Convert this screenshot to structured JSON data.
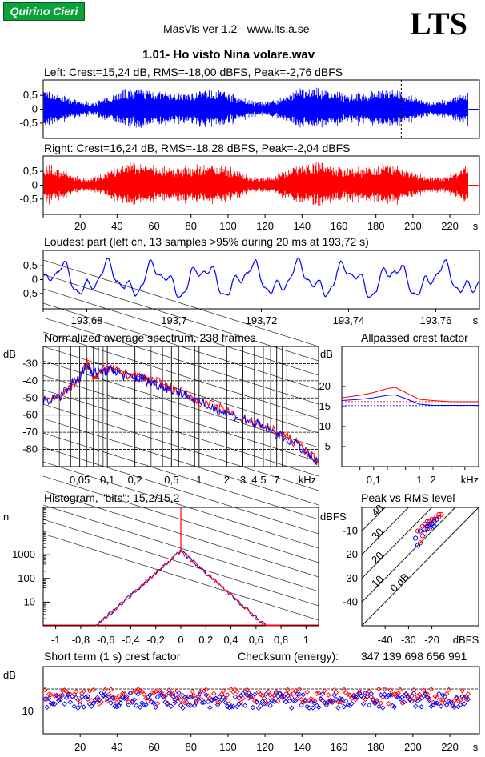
{
  "header": {
    "badge_text": "Quirino Cieri",
    "app_title": "MasVis ver 1.2 - www.lts.a.se",
    "logo": "LTS",
    "file_title": "1.01- Ho visto Nina volare.wav"
  },
  "panels": {
    "left_title": "Left: Crest=15,24 dB, RMS=-18,00 dBFS, Peak=-2,76 dBFS",
    "right_title": "Right: Crest=16,24 dB, RMS=-18,28 dBFS, Peak=-2,04 dBFS",
    "loudest_title": "Loudest part (left  ch, 13 samples >95% during 20 ms at 193,72 s)",
    "spectrum_title": "Normalized average spectrum, 238 frames",
    "allpass_title": "Allpassed crest factor",
    "histogram_title": "Histogram, \"bits\": 15,2/15,2",
    "peakrms_title": "Peak vs RMS level",
    "crest_title": "Short term (1 s) crest factor",
    "checksum_label": "Checksum (energy):",
    "checksum_value": "347 139 698 656 991"
  },
  "colors": {
    "left": "#0000ff",
    "right": "#ff0000",
    "badge": "#0aa337"
  },
  "chart_data": [
    {
      "id": "left-waveform",
      "type": "area",
      "title": "Left: Crest=15,24 dB, RMS=-18,00 dBFS, Peak=-2,76 dBFS",
      "yticks": [
        "0,5",
        "0",
        "-0,5"
      ],
      "ylim": [
        -1,
        1
      ],
      "xlim": [
        0,
        236
      ],
      "marker_x": 193.72,
      "series": [
        {
          "color": "#0000ff",
          "rms_dbfs": -18.0,
          "peak_dbfs": -2.76
        }
      ]
    },
    {
      "id": "right-waveform",
      "type": "area",
      "title": "Right: Crest=16,24 dB, RMS=-18,28 dBFS, Peak=-2,04 dBFS",
      "yticks": [
        "0,5",
        "0",
        "-0,5"
      ],
      "ylim": [
        -1,
        1
      ],
      "xlim": [
        0,
        236
      ],
      "xticks": [
        20,
        40,
        60,
        80,
        100,
        120,
        140,
        160,
        180,
        200,
        220
      ],
      "xticklabels": [
        "20",
        "40",
        "60",
        "80",
        "100",
        "120",
        "140",
        "160",
        "180",
        "200",
        "220"
      ],
      "xunit": "s",
      "series": [
        {
          "color": "#ff0000",
          "rms_dbfs": -18.28,
          "peak_dbfs": -2.04
        }
      ]
    },
    {
      "id": "loudest-part",
      "type": "line",
      "title": "Loudest part (left  ch, 13 samples >95% during 20 ms at 193,72 s)",
      "yticks": [
        "0,5",
        "0",
        "-0,5"
      ],
      "ylim": [
        -1,
        1
      ],
      "xlim": [
        193.67,
        193.77
      ],
      "xticks": [
        193.68,
        193.7,
        193.72,
        193.74,
        193.76
      ],
      "xticklabels": [
        "193,68",
        "193,7",
        "193,72",
        "193,74",
        "193,76"
      ],
      "xunit": "s"
    },
    {
      "id": "spectrum",
      "type": "line",
      "title": "Normalized average spectrum, 238 frames",
      "ylabel": "dB",
      "yticks": [
        -30,
        -40,
        -50,
        -60,
        -70,
        -80
      ],
      "ylim": [
        -90,
        -20
      ],
      "xlim_khz": [
        0.02,
        20
      ],
      "xticks": [
        0.05,
        0.1,
        0.2,
        0.5,
        1,
        2,
        3,
        4,
        5,
        7
      ],
      "xticklabels": [
        "0,05",
        "0,1",
        "0,2",
        "0,5",
        "1",
        "2",
        "3",
        "4",
        "5",
        "7"
      ],
      "xunit": "kHz",
      "series": [
        {
          "color": "#ff0000",
          "x": [
            0.02,
            0.03,
            0.04,
            0.05,
            0.06,
            0.07,
            0.08,
            0.1,
            0.12,
            0.15,
            0.2,
            0.25,
            0.3,
            0.4,
            0.5,
            0.7,
            1,
            1.5,
            2,
            3,
            4,
            5,
            7,
            10,
            15,
            20
          ],
          "y": [
            -52,
            -49,
            -43,
            -39,
            -29,
            -37,
            -36,
            -33,
            -34,
            -36,
            -37,
            -38,
            -40,
            -42,
            -44,
            -47,
            -52,
            -55,
            -58,
            -62,
            -64,
            -66,
            -70,
            -74,
            -81,
            -88
          ]
        },
        {
          "color": "#0000ff",
          "x": [
            0.02,
            0.03,
            0.04,
            0.05,
            0.06,
            0.07,
            0.08,
            0.1,
            0.12,
            0.15,
            0.2,
            0.25,
            0.3,
            0.4,
            0.5,
            0.7,
            1,
            1.5,
            2,
            3,
            4,
            5,
            7,
            10,
            15,
            20
          ],
          "y": [
            -52,
            -49,
            -42,
            -38,
            -31,
            -35,
            -35,
            -34,
            -34,
            -37,
            -38,
            -39,
            -41,
            -43,
            -45,
            -48,
            -53,
            -56,
            -59,
            -62,
            -65,
            -67,
            -71,
            -75,
            -82,
            -89
          ]
        }
      ]
    },
    {
      "id": "allpassed-crest",
      "type": "line",
      "title": "Allpassed crest factor",
      "ylabel": "dB",
      "yticks": [
        20,
        15,
        10,
        5
      ],
      "ylim": [
        0,
        30
      ],
      "xticks": [
        0.1,
        1,
        2
      ],
      "xticklabels": [
        "0,1",
        "1",
        "2"
      ],
      "xunit": "kHz",
      "series": [
        {
          "color": "#ff0000",
          "x": [
            0.02,
            0.05,
            0.1,
            0.2,
            0.3,
            0.5,
            1,
            2,
            5,
            20
          ],
          "y": [
            17.2,
            17.8,
            18.5,
            19.5,
            19.8,
            18.5,
            16.8,
            16.5,
            16.2,
            16.2
          ]
        },
        {
          "color": "#0000ff",
          "x": [
            0.02,
            0.05,
            0.1,
            0.2,
            0.3,
            0.5,
            1,
            2,
            5,
            20
          ],
          "y": [
            16.5,
            16.8,
            17.2,
            17.8,
            17.9,
            17.0,
            15.6,
            15.3,
            15.3,
            15.3
          ]
        }
      ],
      "ref_lines": [
        {
          "color": "#ff0000",
          "y": 16.24
        },
        {
          "color": "#0000ff",
          "y": 15.24
        }
      ]
    },
    {
      "id": "histogram",
      "type": "line",
      "title": "Histogram, \"bits\": 15,2/15,2",
      "ylabel": "n",
      "yticks": [
        1000,
        100,
        10
      ],
      "yticklabels": [
        "1000",
        "100",
        "10"
      ],
      "yscale": "log",
      "ylim": [
        1,
        100000
      ],
      "xlim": [
        -1.1,
        1.1
      ],
      "xticks": [
        -1,
        -0.8,
        -0.6,
        -0.4,
        -0.2,
        0,
        0.2,
        0.4,
        0.6,
        0.8,
        1
      ],
      "xticklabels": [
        "-1",
        "-0,8",
        "-0,6",
        "-0,4",
        "-0,2",
        "0",
        "0,2",
        "0,4",
        "0,6",
        "0,8",
        "1"
      ],
      "peak_count": 1500,
      "range": [
        -0.68,
        0.8
      ]
    },
    {
      "id": "peak-vs-rms",
      "type": "scatter",
      "title": "Peak vs RMS level",
      "ylabel": "dBFS",
      "xlabel": "dBFS",
      "yticks": [
        -10,
        -20,
        -30,
        -40
      ],
      "xticks": [
        -40,
        -30,
        -20
      ],
      "xlim": [
        -50,
        0
      ],
      "ylim": [
        -50,
        0
      ],
      "diagonal_labels": [
        "40",
        "30",
        "20",
        "10",
        "0 dB"
      ],
      "series": [
        {
          "color": "#ff0000",
          "x": [
            -26,
            -24,
            -23,
            -22,
            -21,
            -20,
            -19,
            -18,
            -17,
            -16,
            -22,
            -20,
            -18,
            -21,
            -19,
            -17,
            -24,
            -25
          ],
          "y": [
            -10,
            -8,
            -7,
            -6,
            -6,
            -5,
            -5,
            -4,
            -4,
            -3,
            -9,
            -7,
            -4,
            -8,
            -6,
            -3,
            -12,
            -15
          ]
        },
        {
          "color": "#0000ff",
          "x": [
            -27,
            -25,
            -23,
            -22,
            -21,
            -20,
            -19,
            -18,
            -23,
            -21,
            -19,
            -26
          ],
          "y": [
            -13,
            -10,
            -9,
            -8,
            -7,
            -7,
            -6,
            -5,
            -11,
            -9,
            -8,
            -16
          ]
        }
      ]
    },
    {
      "id": "short-term-crest",
      "type": "scatter",
      "title": "Short term (1 s) crest factor",
      "ylabel": "dB",
      "yticks": [
        10
      ],
      "ylim": [
        0,
        30
      ],
      "xlim": [
        0,
        236
      ],
      "xticks": [
        20,
        40,
        60,
        80,
        100,
        120,
        140,
        160,
        180,
        200,
        220
      ],
      "xticklabels": [
        "20",
        "40",
        "60",
        "80",
        "100",
        "120",
        "140",
        "160",
        "180",
        "200",
        "220"
      ],
      "xunit": "s",
      "ref_lines": [
        16.24,
        15.24
      ],
      "series": [
        {
          "color": "#ff0000",
          "name": ""
        },
        {
          "color": "#0000ff",
          "name": ""
        }
      ]
    }
  ]
}
